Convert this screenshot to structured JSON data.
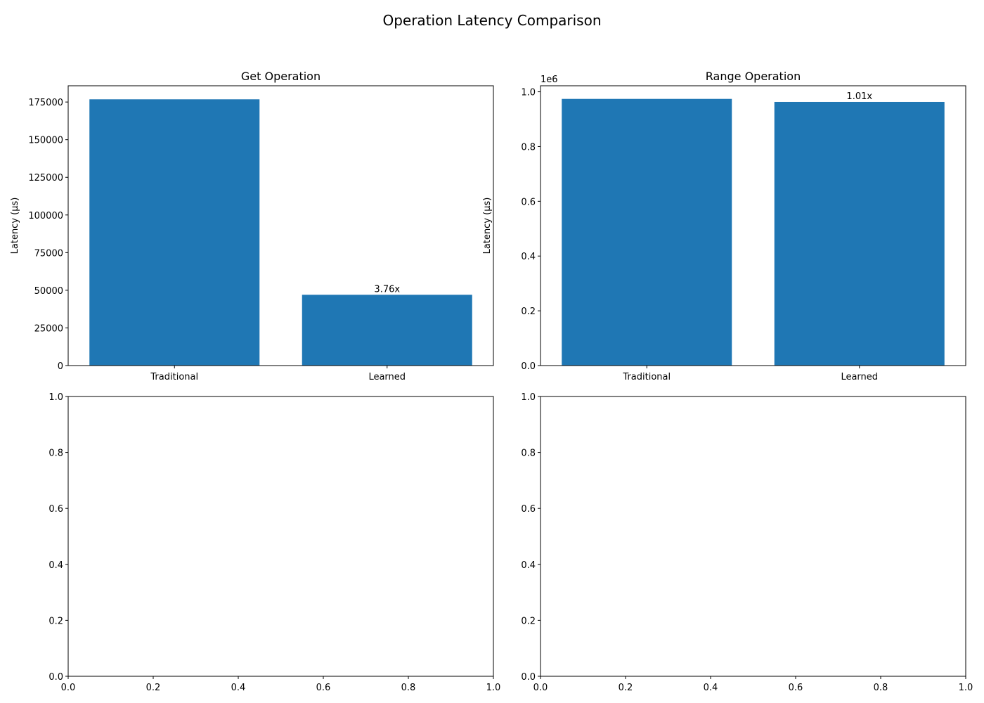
{
  "figure": {
    "title": "Operation Latency Comparison"
  },
  "colors": {
    "bar": "#1f77b4"
  },
  "chart_data": [
    {
      "type": "bar",
      "title": "Get Operation",
      "xlabel": "",
      "ylabel": "Latency (µs)",
      "categories": [
        "Traditional",
        "Learned"
      ],
      "values": [
        176800,
        47000
      ],
      "ylim": [
        0,
        185800
      ],
      "yticks": [
        0,
        25000,
        50000,
        75000,
        100000,
        125000,
        150000,
        175000
      ],
      "ytick_labels": [
        "0",
        "25000",
        "50000",
        "75000",
        "100000",
        "125000",
        "150000",
        "175000"
      ],
      "offset_text": "",
      "annotations": [
        {
          "category": "Learned",
          "text": "3.76x"
        }
      ]
    },
    {
      "type": "bar",
      "title": "Range Operation",
      "xlabel": "",
      "ylabel": "Latency (µs)",
      "categories": [
        "Traditional",
        "Learned"
      ],
      "values": [
        974000,
        963000
      ],
      "ylim": [
        0,
        1022000
      ],
      "yticks": [
        0,
        200000,
        400000,
        600000,
        800000,
        1000000
      ],
      "ytick_labels": [
        "0.0",
        "0.2",
        "0.4",
        "0.6",
        "0.8",
        "1.0"
      ],
      "offset_text": "1e6",
      "annotations": [
        {
          "category": "Learned",
          "text": "1.01x"
        }
      ]
    },
    {
      "type": "bar",
      "title": "",
      "categories": [],
      "values": [],
      "xlim": [
        0,
        1
      ],
      "ylim": [
        0,
        1
      ],
      "xticks": [
        0,
        0.2,
        0.4,
        0.6,
        0.8,
        1.0
      ],
      "xtick_labels": [
        "0.0",
        "0.2",
        "0.4",
        "0.6",
        "0.8",
        "1.0"
      ],
      "yticks": [
        0,
        0.2,
        0.4,
        0.6,
        0.8,
        1.0
      ],
      "ytick_labels": [
        "0.0",
        "0.2",
        "0.4",
        "0.6",
        "0.8",
        "1.0"
      ]
    },
    {
      "type": "bar",
      "title": "",
      "categories": [],
      "values": [],
      "xlim": [
        0,
        1
      ],
      "ylim": [
        0,
        1
      ],
      "xticks": [
        0,
        0.2,
        0.4,
        0.6,
        0.8,
        1.0
      ],
      "xtick_labels": [
        "0.0",
        "0.2",
        "0.4",
        "0.6",
        "0.8",
        "1.0"
      ],
      "yticks": [
        0,
        0.2,
        0.4,
        0.6,
        0.8,
        1.0
      ],
      "ytick_labels": [
        "0.0",
        "0.2",
        "0.4",
        "0.6",
        "0.8",
        "1.0"
      ]
    }
  ]
}
